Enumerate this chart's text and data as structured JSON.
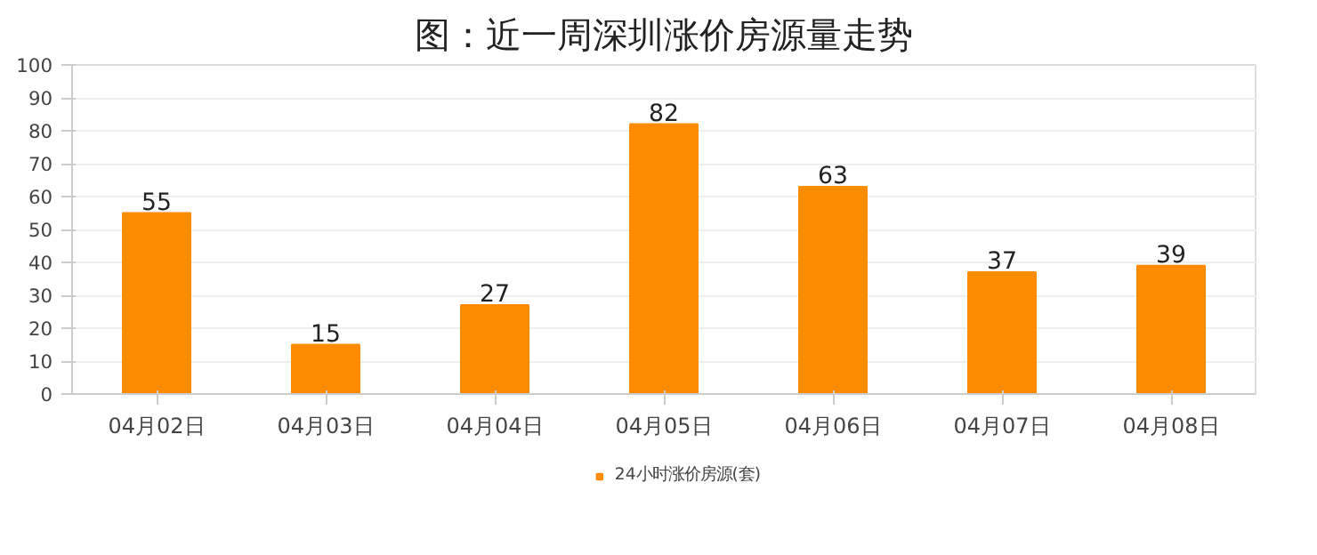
{
  "chart_data": {
    "type": "bar",
    "title": "图：近一周深圳涨价房源量走势",
    "categories": [
      "04月02日",
      "04月03日",
      "04月04日",
      "04月05日",
      "04月06日",
      "04月07日",
      "04月08日"
    ],
    "series": [
      {
        "name": "24小时涨价房源(套)",
        "color": "#ff8c00",
        "values": [
          55,
          15,
          27,
          82,
          63,
          37,
          39
        ]
      }
    ],
    "ylim": [
      0,
      100
    ],
    "yticks": [
      0,
      10,
      20,
      30,
      40,
      50,
      60,
      70,
      80,
      90,
      100
    ],
    "grid": "y",
    "legend": "bottom",
    "data_labels": true
  }
}
